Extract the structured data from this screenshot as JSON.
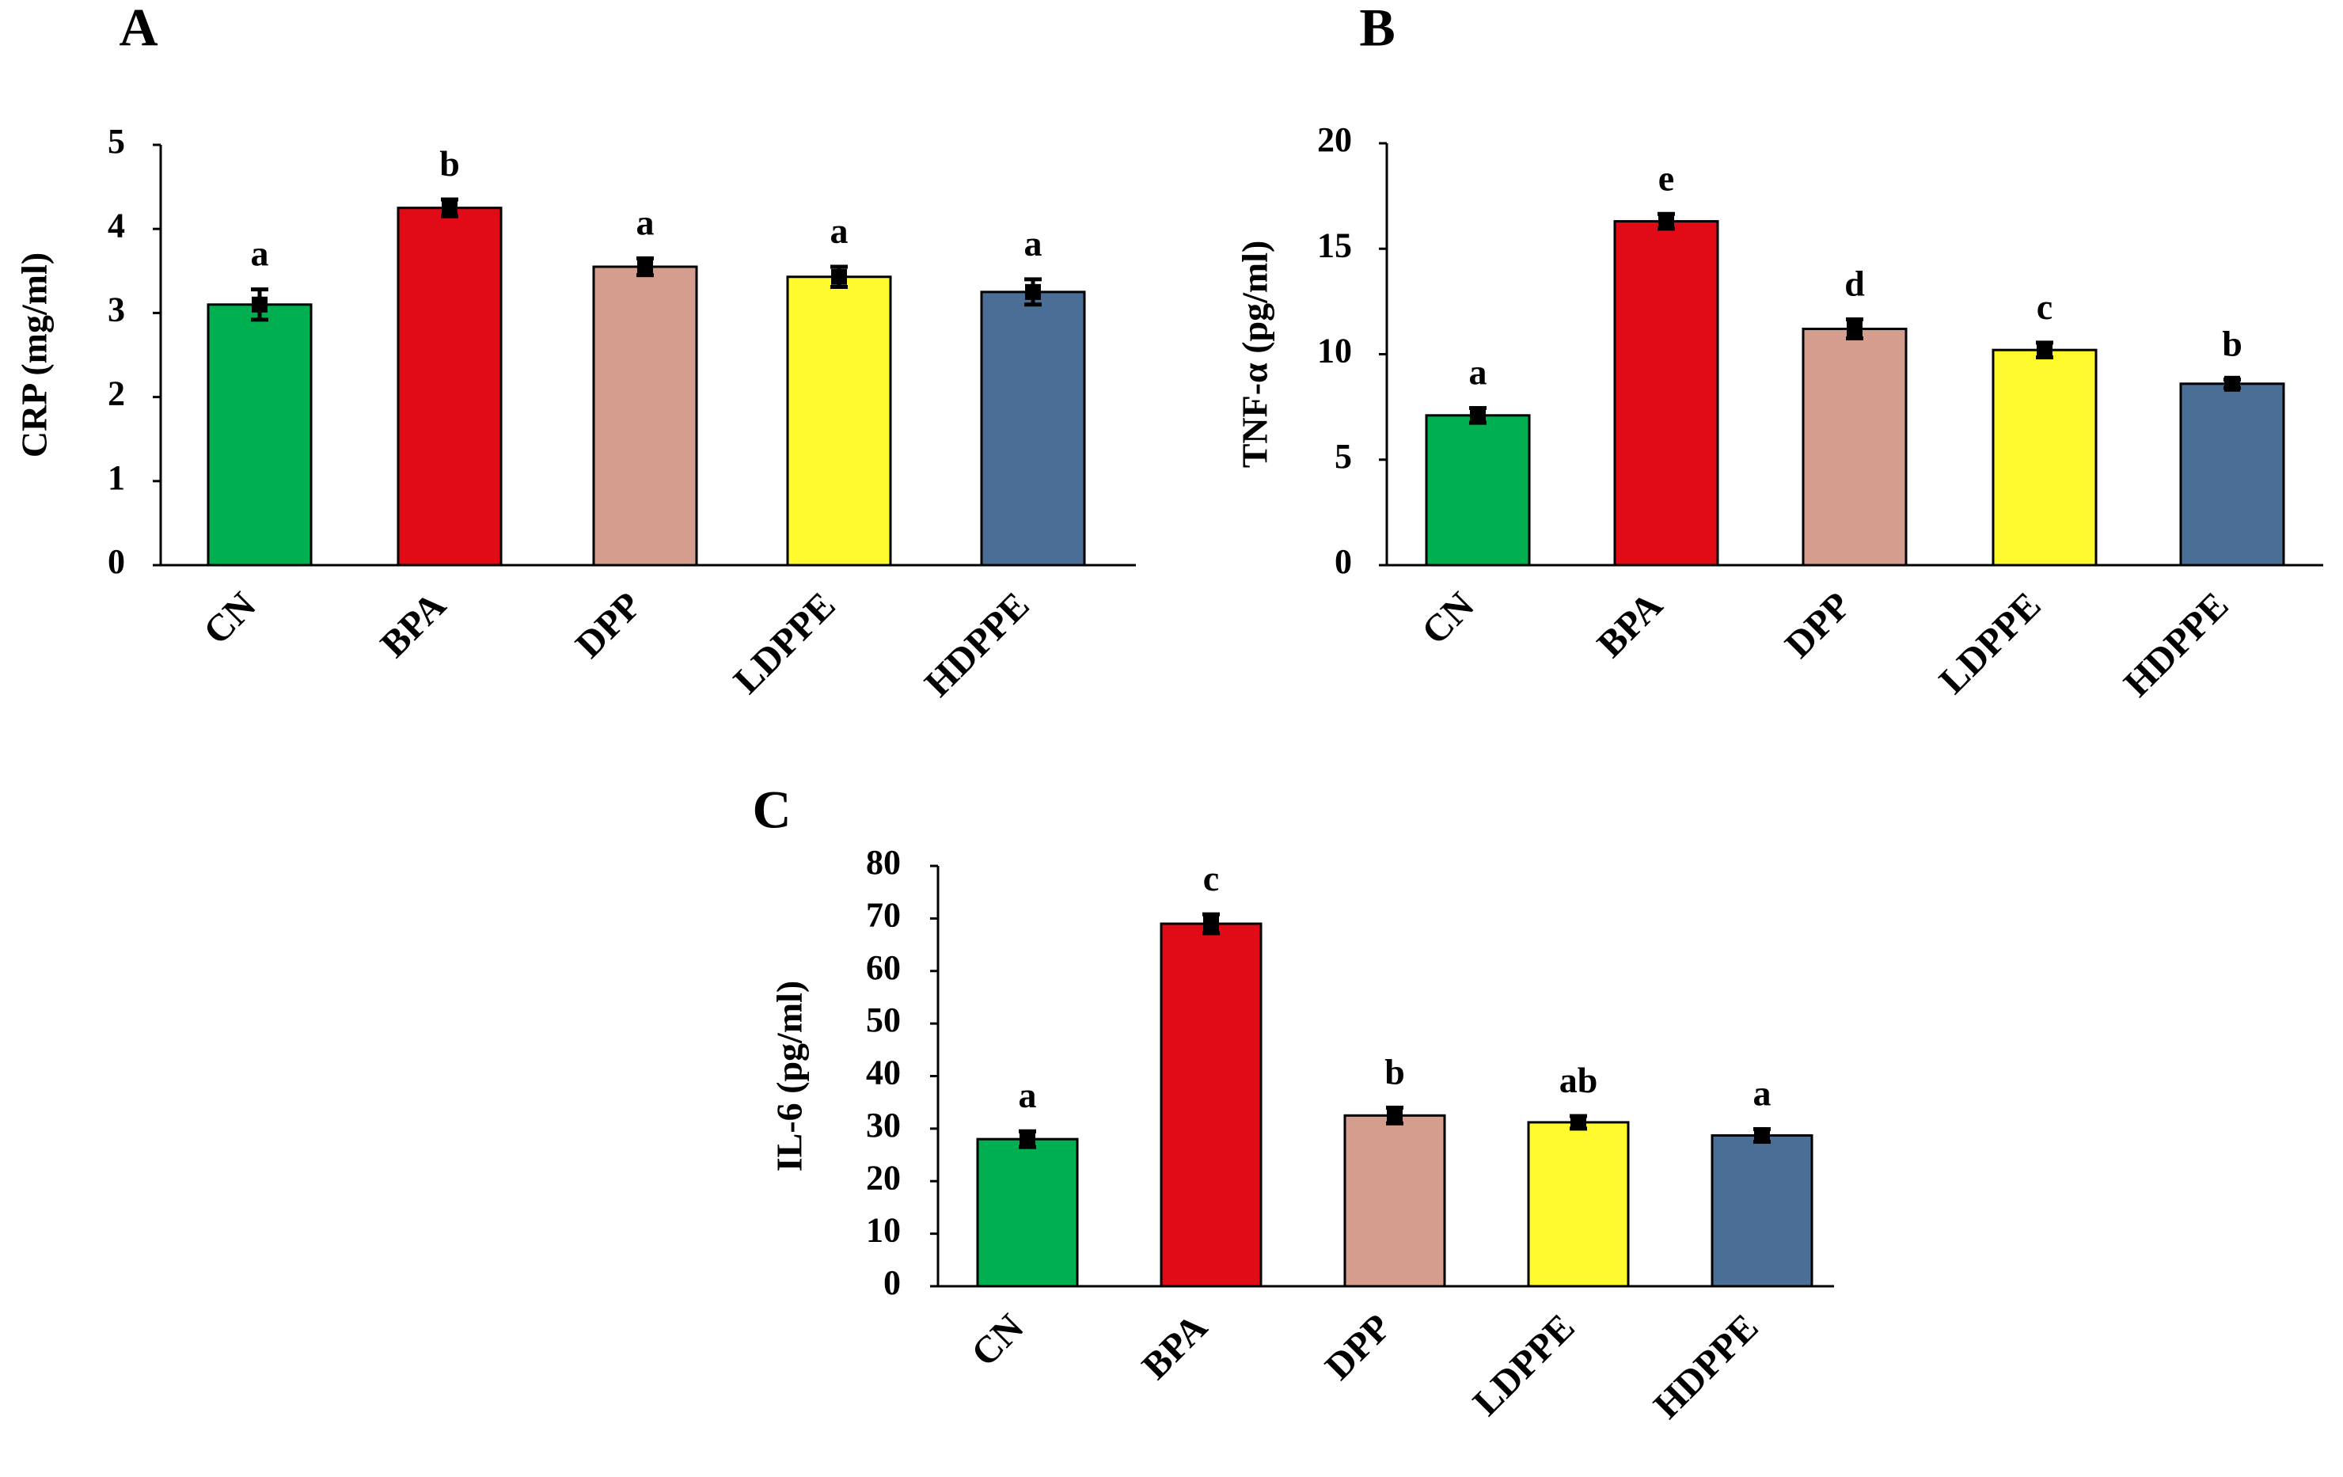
{
  "chart_data": [
    {
      "type": "bar",
      "panel": "A",
      "categories": [
        "CN",
        "BPA",
        "DPP",
        "LDPPE",
        "HDPPE"
      ],
      "values": [
        3.1,
        4.25,
        3.55,
        3.43,
        3.25
      ],
      "errors": [
        0.18,
        0.1,
        0.1,
        0.12,
        0.15
      ],
      "significance": [
        "a",
        "b",
        "a",
        "a",
        "a"
      ],
      "colors": [
        "#00b050",
        "#e00b16",
        "#d49d8e",
        "#fffa2e",
        "#4a6e96"
      ],
      "xlabel": "",
      "ylabel": "CRP (mg/ml)",
      "ylim": [
        0,
        5
      ],
      "yticks": [
        0,
        1,
        2,
        3,
        4,
        5
      ],
      "grid": false
    },
    {
      "type": "bar",
      "panel": "B",
      "categories": [
        "CN",
        "BPA",
        "DPP",
        "LDPPE",
        "HDPPE"
      ],
      "values": [
        7.1,
        16.3,
        11.2,
        10.2,
        8.6
      ],
      "errors": [
        0.35,
        0.35,
        0.45,
        0.35,
        0.2
      ],
      "significance": [
        "a",
        "e",
        "d",
        "c",
        "b"
      ],
      "colors": [
        "#00b050",
        "#e00b16",
        "#d49d8e",
        "#fffa2e",
        "#4a6e96"
      ],
      "xlabel": "",
      "ylabel": "TNF-α (pg/ml)",
      "ylim": [
        0,
        20
      ],
      "yticks": [
        0,
        5,
        10,
        15,
        20
      ],
      "grid": false
    },
    {
      "type": "bar",
      "panel": "C",
      "categories": [
        "CN",
        "BPA",
        "DPP",
        "LDPPE",
        "HDPPE"
      ],
      "values": [
        28,
        69,
        32.5,
        31.2,
        28.7
      ],
      "errors": [
        1.5,
        1.8,
        1.5,
        1.2,
        1.2
      ],
      "significance": [
        "a",
        "c",
        "b",
        "ab",
        "a"
      ],
      "colors": [
        "#00b050",
        "#e00b16",
        "#d49d8e",
        "#fffa2e",
        "#4a6e96"
      ],
      "xlabel": "",
      "ylabel": "IL-6 (pg/ml)",
      "ylim": [
        0,
        80
      ],
      "yticks": [
        0,
        10,
        20,
        30,
        40,
        50,
        60,
        70,
        80
      ],
      "grid": false
    }
  ]
}
